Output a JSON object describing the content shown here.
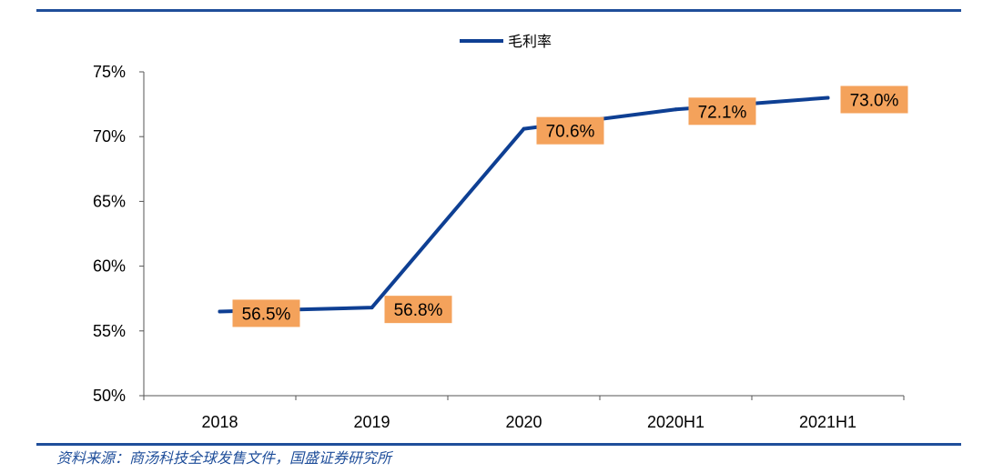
{
  "chart_data": {
    "type": "line",
    "categories": [
      "2018",
      "2019",
      "2020",
      "2020H1",
      "2021H1"
    ],
    "series": [
      {
        "name": "毛利率",
        "values": [
          56.5,
          56.8,
          70.6,
          72.1,
          73.0
        ],
        "labels": [
          "56.5%",
          "56.8%",
          "70.6%",
          "72.1%",
          "73.0%"
        ]
      }
    ],
    "yticks": [
      "50%",
      "55%",
      "60%",
      "65%",
      "70%",
      "75%"
    ],
    "ylim": [
      50,
      75
    ],
    "grid": false,
    "legend_position": "top-center",
    "colors": {
      "line": "#0e3f93",
      "label_bg": "#f4a25b",
      "rule": "#1f4e9a"
    }
  },
  "source": "资料来源：商汤科技全球发售文件，国盛证券研究所"
}
